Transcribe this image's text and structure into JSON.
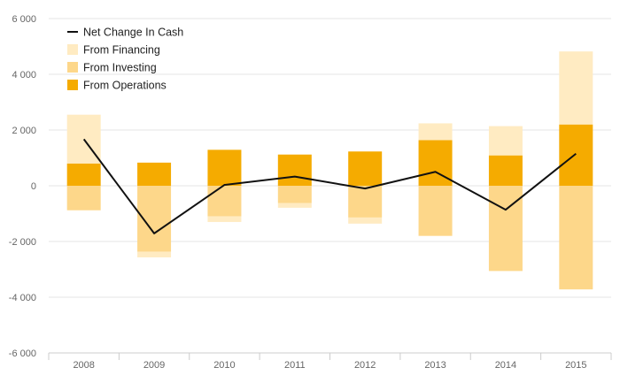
{
  "chart_data": {
    "type": "bar",
    "categories": [
      "2008",
      "2009",
      "2010",
      "2011",
      "2012",
      "2013",
      "2014",
      "2015"
    ],
    "series": [
      {
        "name": "From Operations",
        "kind": "stacked-bar",
        "color": "#F5AB00",
        "values": [
          800,
          830,
          1290,
          1120,
          1230,
          1640,
          1090,
          2200
        ]
      },
      {
        "name": "From Investing",
        "kind": "stacked-bar",
        "color": "#FDD78A",
        "values": [
          -880,
          -2370,
          -1100,
          -620,
          -1140,
          -1800,
          -3060,
          -3720
        ]
      },
      {
        "name": "From Financing",
        "kind": "stacked-bar",
        "color": "#FFEBC2",
        "values": [
          1750,
          -200,
          -200,
          -170,
          -220,
          600,
          1050,
          2620
        ]
      },
      {
        "name": "Net Change In Cash",
        "kind": "line",
        "color": "#111111",
        "values": [
          1670,
          -1710,
          30,
          330,
          -100,
          500,
          -860,
          1150
        ]
      }
    ],
    "yticks": [
      "6 000",
      "4 000",
      "2 000",
      "0",
      "-2 000",
      "-4 000",
      "-6 000"
    ],
    "ylim": [
      -6000,
      6000
    ],
    "grid": true,
    "legend_position": "top-left"
  }
}
